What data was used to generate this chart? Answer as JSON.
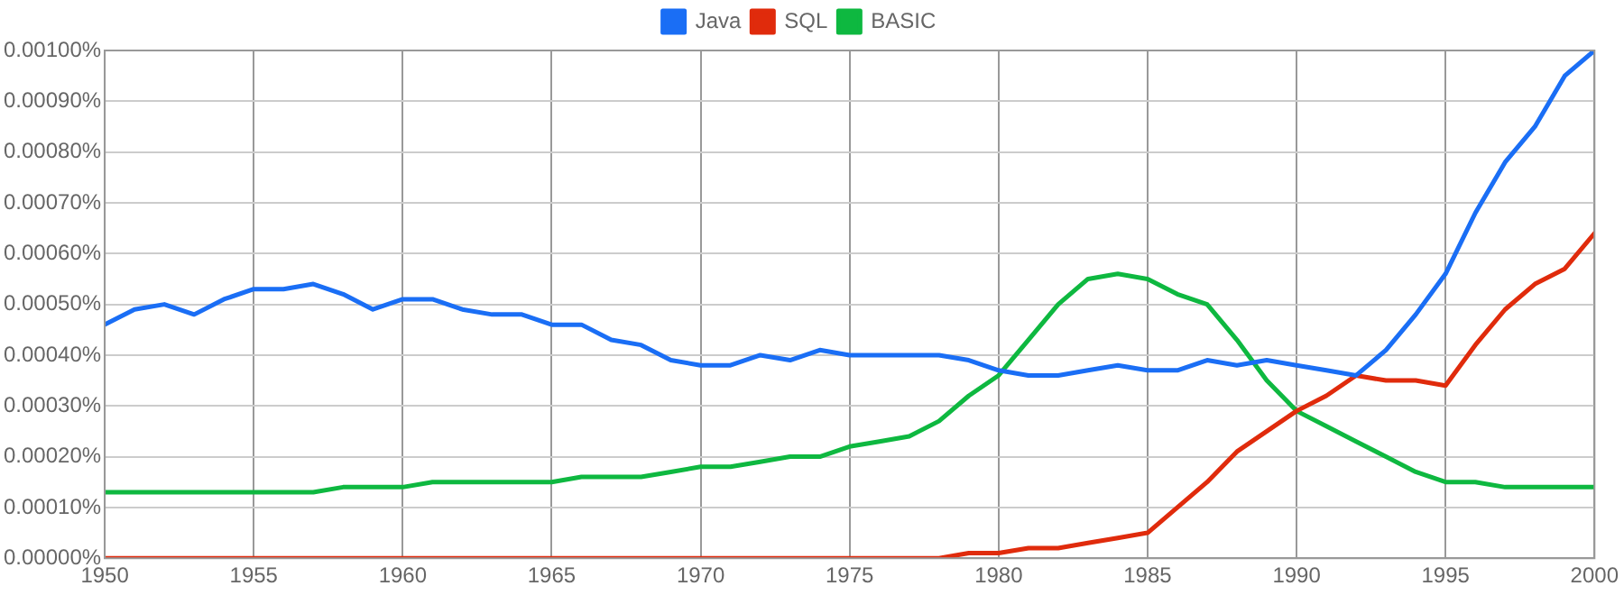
{
  "chart_data": {
    "type": "line",
    "x": [
      1950,
      1951,
      1952,
      1953,
      1954,
      1955,
      1956,
      1957,
      1958,
      1959,
      1960,
      1961,
      1962,
      1963,
      1964,
      1965,
      1966,
      1967,
      1968,
      1969,
      1970,
      1971,
      1972,
      1973,
      1974,
      1975,
      1976,
      1977,
      1978,
      1979,
      1980,
      1981,
      1982,
      1983,
      1984,
      1985,
      1986,
      1987,
      1988,
      1989,
      1990,
      1991,
      1992,
      1993,
      1994,
      1995,
      1996,
      1997,
      1998,
      1999,
      2000
    ],
    "series": [
      {
        "name": "Java",
        "color": "#1a6ef5",
        "values": [
          0.00046,
          0.00049,
          0.0005,
          0.00048,
          0.00051,
          0.00053,
          0.00053,
          0.00054,
          0.00052,
          0.00049,
          0.00051,
          0.00051,
          0.00049,
          0.00048,
          0.00048,
          0.00046,
          0.00046,
          0.00043,
          0.00042,
          0.00039,
          0.00038,
          0.00038,
          0.0004,
          0.00039,
          0.00041,
          0.0004,
          0.0004,
          0.0004,
          0.0004,
          0.00039,
          0.00037,
          0.00036,
          0.00036,
          0.00037,
          0.00038,
          0.00037,
          0.00037,
          0.00039,
          0.00038,
          0.00039,
          0.00038,
          0.00037,
          0.00036,
          0.00041,
          0.00048,
          0.00056,
          0.00068,
          0.00078,
          0.00085,
          0.00095,
          0.001
        ]
      },
      {
        "name": "SQL",
        "color": "#e02b0c",
        "values": [
          0,
          0,
          0,
          0,
          0,
          0,
          0,
          0,
          0,
          0,
          0,
          0,
          0,
          0,
          0,
          0,
          0,
          0,
          0,
          0,
          0,
          0,
          0,
          0,
          0,
          0,
          0,
          0,
          0,
          1e-05,
          1e-05,
          2e-05,
          2e-05,
          3e-05,
          4e-05,
          5e-05,
          0.0001,
          0.00015,
          0.00021,
          0.00025,
          0.00029,
          0.00032,
          0.00036,
          0.00035,
          0.00035,
          0.00034,
          0.00042,
          0.00049,
          0.00054,
          0.00057,
          0.00064
        ]
      },
      {
        "name": "BASIC",
        "color": "#0eb840",
        "values": [
          0.00013,
          0.00013,
          0.00013,
          0.00013,
          0.00013,
          0.00013,
          0.00013,
          0.00013,
          0.00014,
          0.00014,
          0.00014,
          0.00015,
          0.00015,
          0.00015,
          0.00015,
          0.00015,
          0.00016,
          0.00016,
          0.00016,
          0.00017,
          0.00018,
          0.00018,
          0.00019,
          0.0002,
          0.0002,
          0.00022,
          0.00023,
          0.00024,
          0.00027,
          0.00032,
          0.00036,
          0.00043,
          0.0005,
          0.00055,
          0.00056,
          0.00055,
          0.00052,
          0.0005,
          0.00043,
          0.00035,
          0.00029,
          0.00026,
          0.00023,
          0.0002,
          0.00017,
          0.00015,
          0.00015,
          0.00014,
          0.00014,
          0.00014,
          0.00014
        ]
      }
    ],
    "xlim": [
      1950,
      2000
    ],
    "xticks": [
      1950,
      1955,
      1960,
      1965,
      1970,
      1975,
      1980,
      1985,
      1990,
      1995,
      2000
    ],
    "ylim": [
      0,
      0.001
    ],
    "yticks": [
      {
        "value": 0,
        "label": "0.00000%"
      },
      {
        "value": 0.0001,
        "label": "0.00010%"
      },
      {
        "value": 0.0002,
        "label": "0.00020%"
      },
      {
        "value": 0.0003,
        "label": "0.00030%"
      },
      {
        "value": 0.0004,
        "label": "0.00040%"
      },
      {
        "value": 0.0005,
        "label": "0.00050%"
      },
      {
        "value": 0.0006,
        "label": "0.00060%"
      },
      {
        "value": 0.0007,
        "label": "0.00070%"
      },
      {
        "value": 0.0008,
        "label": "0.00080%"
      },
      {
        "value": 0.0009,
        "label": "0.00090%"
      },
      {
        "value": 0.001,
        "label": "0.00100%"
      }
    ],
    "grid": true,
    "legend": "top",
    "marker": "none",
    "line_style": "solid"
  }
}
